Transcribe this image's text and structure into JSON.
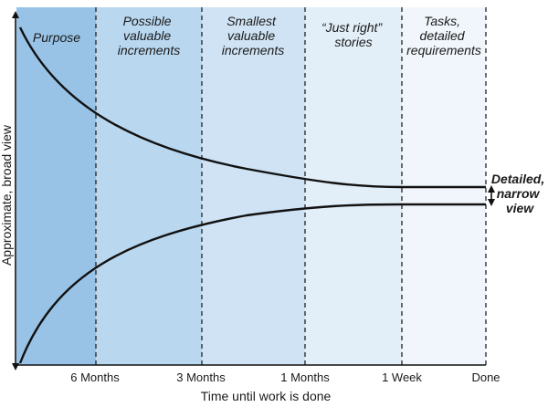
{
  "bands": [
    {
      "lines": [
        "Purpose"
      ],
      "color": "#98c3e6"
    },
    {
      "lines": [
        "Possible",
        "valuable",
        "increments"
      ],
      "color": "#b9d7ef"
    },
    {
      "lines": [
        "Smallest",
        "valuable",
        "increments"
      ],
      "color": "#cfe3f4"
    },
    {
      "lines": [
        "“Just right”",
        "stories"
      ],
      "color": "#e2eef8"
    },
    {
      "lines": [
        "Tasks,",
        "detailed",
        "requirements"
      ],
      "color": "#f0f6fb"
    }
  ],
  "x_ticks": [
    "6 Months",
    "3 Months",
    "1 Months",
    "1 Week",
    "Done"
  ],
  "x_axis_title": "Time until work is done",
  "y_axis_title": "Approximate, broad view",
  "side_label_lines": [
    "Detailed,",
    "narrow",
    "view"
  ]
}
